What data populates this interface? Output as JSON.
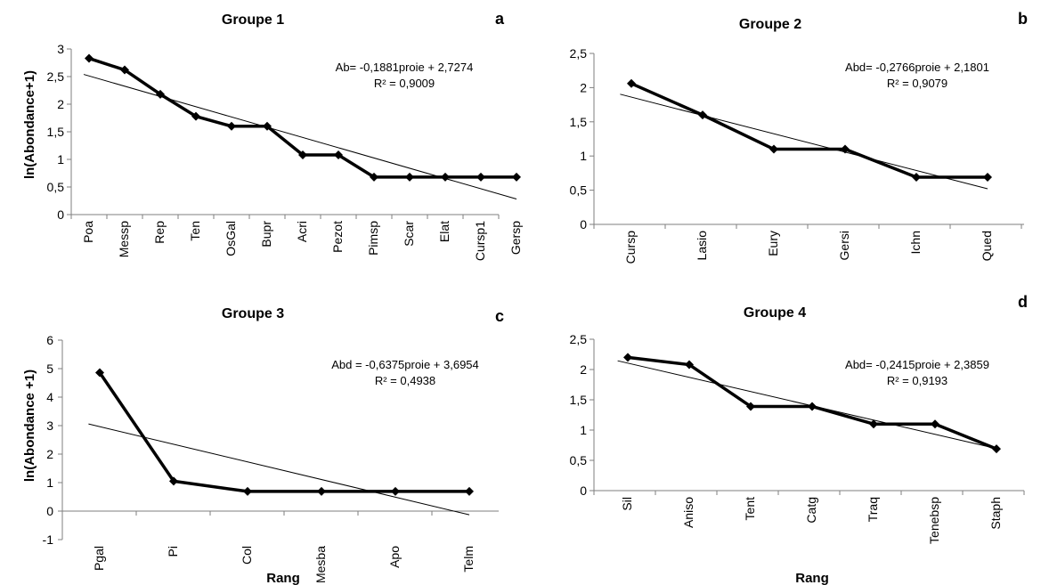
{
  "chart_data": [
    {
      "type": "line",
      "title": "Groupe 1",
      "corner_label": "a",
      "xlabel": "",
      "ylabel": "ln(Abondance+1)",
      "ylim": [
        0,
        3
      ],
      "yticks": [
        "0",
        "0,5",
        "1",
        "1,5",
        "2",
        "2,5",
        "3"
      ],
      "categories": [
        "Poa",
        "Messp",
        "Rep",
        "Ten",
        "OsGal",
        "Bupr",
        "Acri",
        "Pezot",
        "Pimsp",
        "Scar",
        "Elat",
        "Cursp1",
        "Gersp"
      ],
      "values": [
        2.83,
        2.62,
        2.18,
        1.78,
        1.6,
        1.6,
        1.08,
        1.08,
        0.68,
        0.68,
        0.68,
        0.68,
        0.68
      ],
      "trend": {
        "slope": -0.1881,
        "intercept": 2.7274
      },
      "equation": "Ab= -0,1881proie + 2,7274",
      "r2": "R² = 0,9009"
    },
    {
      "type": "line",
      "title": "Groupe 2",
      "corner_label": "b",
      "xlabel": "",
      "ylabel": "",
      "ylim": [
        0,
        2.5
      ],
      "yticks": [
        "0",
        "0,5",
        "1",
        "1,5",
        "2",
        "2,5"
      ],
      "categories": [
        "Cursp",
        "Lasio",
        "Eury",
        "Gersi",
        "Ichn",
        "Qued"
      ],
      "values": [
        2.06,
        1.6,
        1.1,
        1.1,
        0.69,
        0.69
      ],
      "trend": {
        "slope": -0.2766,
        "intercept": 2.1801
      },
      "equation": "Abd= -0,2766proie + 2,1801",
      "r2": "R² = 0,9079"
    },
    {
      "type": "line",
      "title": "Groupe 3",
      "corner_label": "c",
      "xlabel": "Rang",
      "ylabel": "ln(Abondance +1)",
      "ylim": [
        -1,
        6
      ],
      "yticks": [
        "-1",
        "0",
        "1",
        "2",
        "3",
        "4",
        "5",
        "6"
      ],
      "categories": [
        "Pgal",
        "Pi",
        "Col",
        "Mesba",
        "Apo",
        "Telm"
      ],
      "values": [
        4.86,
        1.05,
        0.69,
        0.69,
        0.69,
        0.69
      ],
      "trend": {
        "slope": -0.6375,
        "intercept": 3.6954
      },
      "equation": "Abd = -0,6375proie + 3,6954",
      "r2": "R² = 0,4938"
    },
    {
      "type": "line",
      "title": "Groupe 4",
      "corner_label": "d",
      "xlabel": "Rang",
      "ylabel": "",
      "ylim": [
        0,
        2.5
      ],
      "yticks": [
        "0",
        "0,5",
        "1",
        "1,5",
        "2",
        "2,5"
      ],
      "categories": [
        "Sil",
        "Aniso",
        "Tent",
        "Catg",
        "Traq",
        "Tenebsp",
        "Staph"
      ],
      "values": [
        2.2,
        2.08,
        1.39,
        1.39,
        1.1,
        1.1,
        0.69
      ],
      "trend": {
        "slope": -0.2415,
        "intercept": 2.3859
      },
      "equation": "Abd= -0,2415proie + 2,3859",
      "r2": "R² = 0,9193"
    }
  ]
}
